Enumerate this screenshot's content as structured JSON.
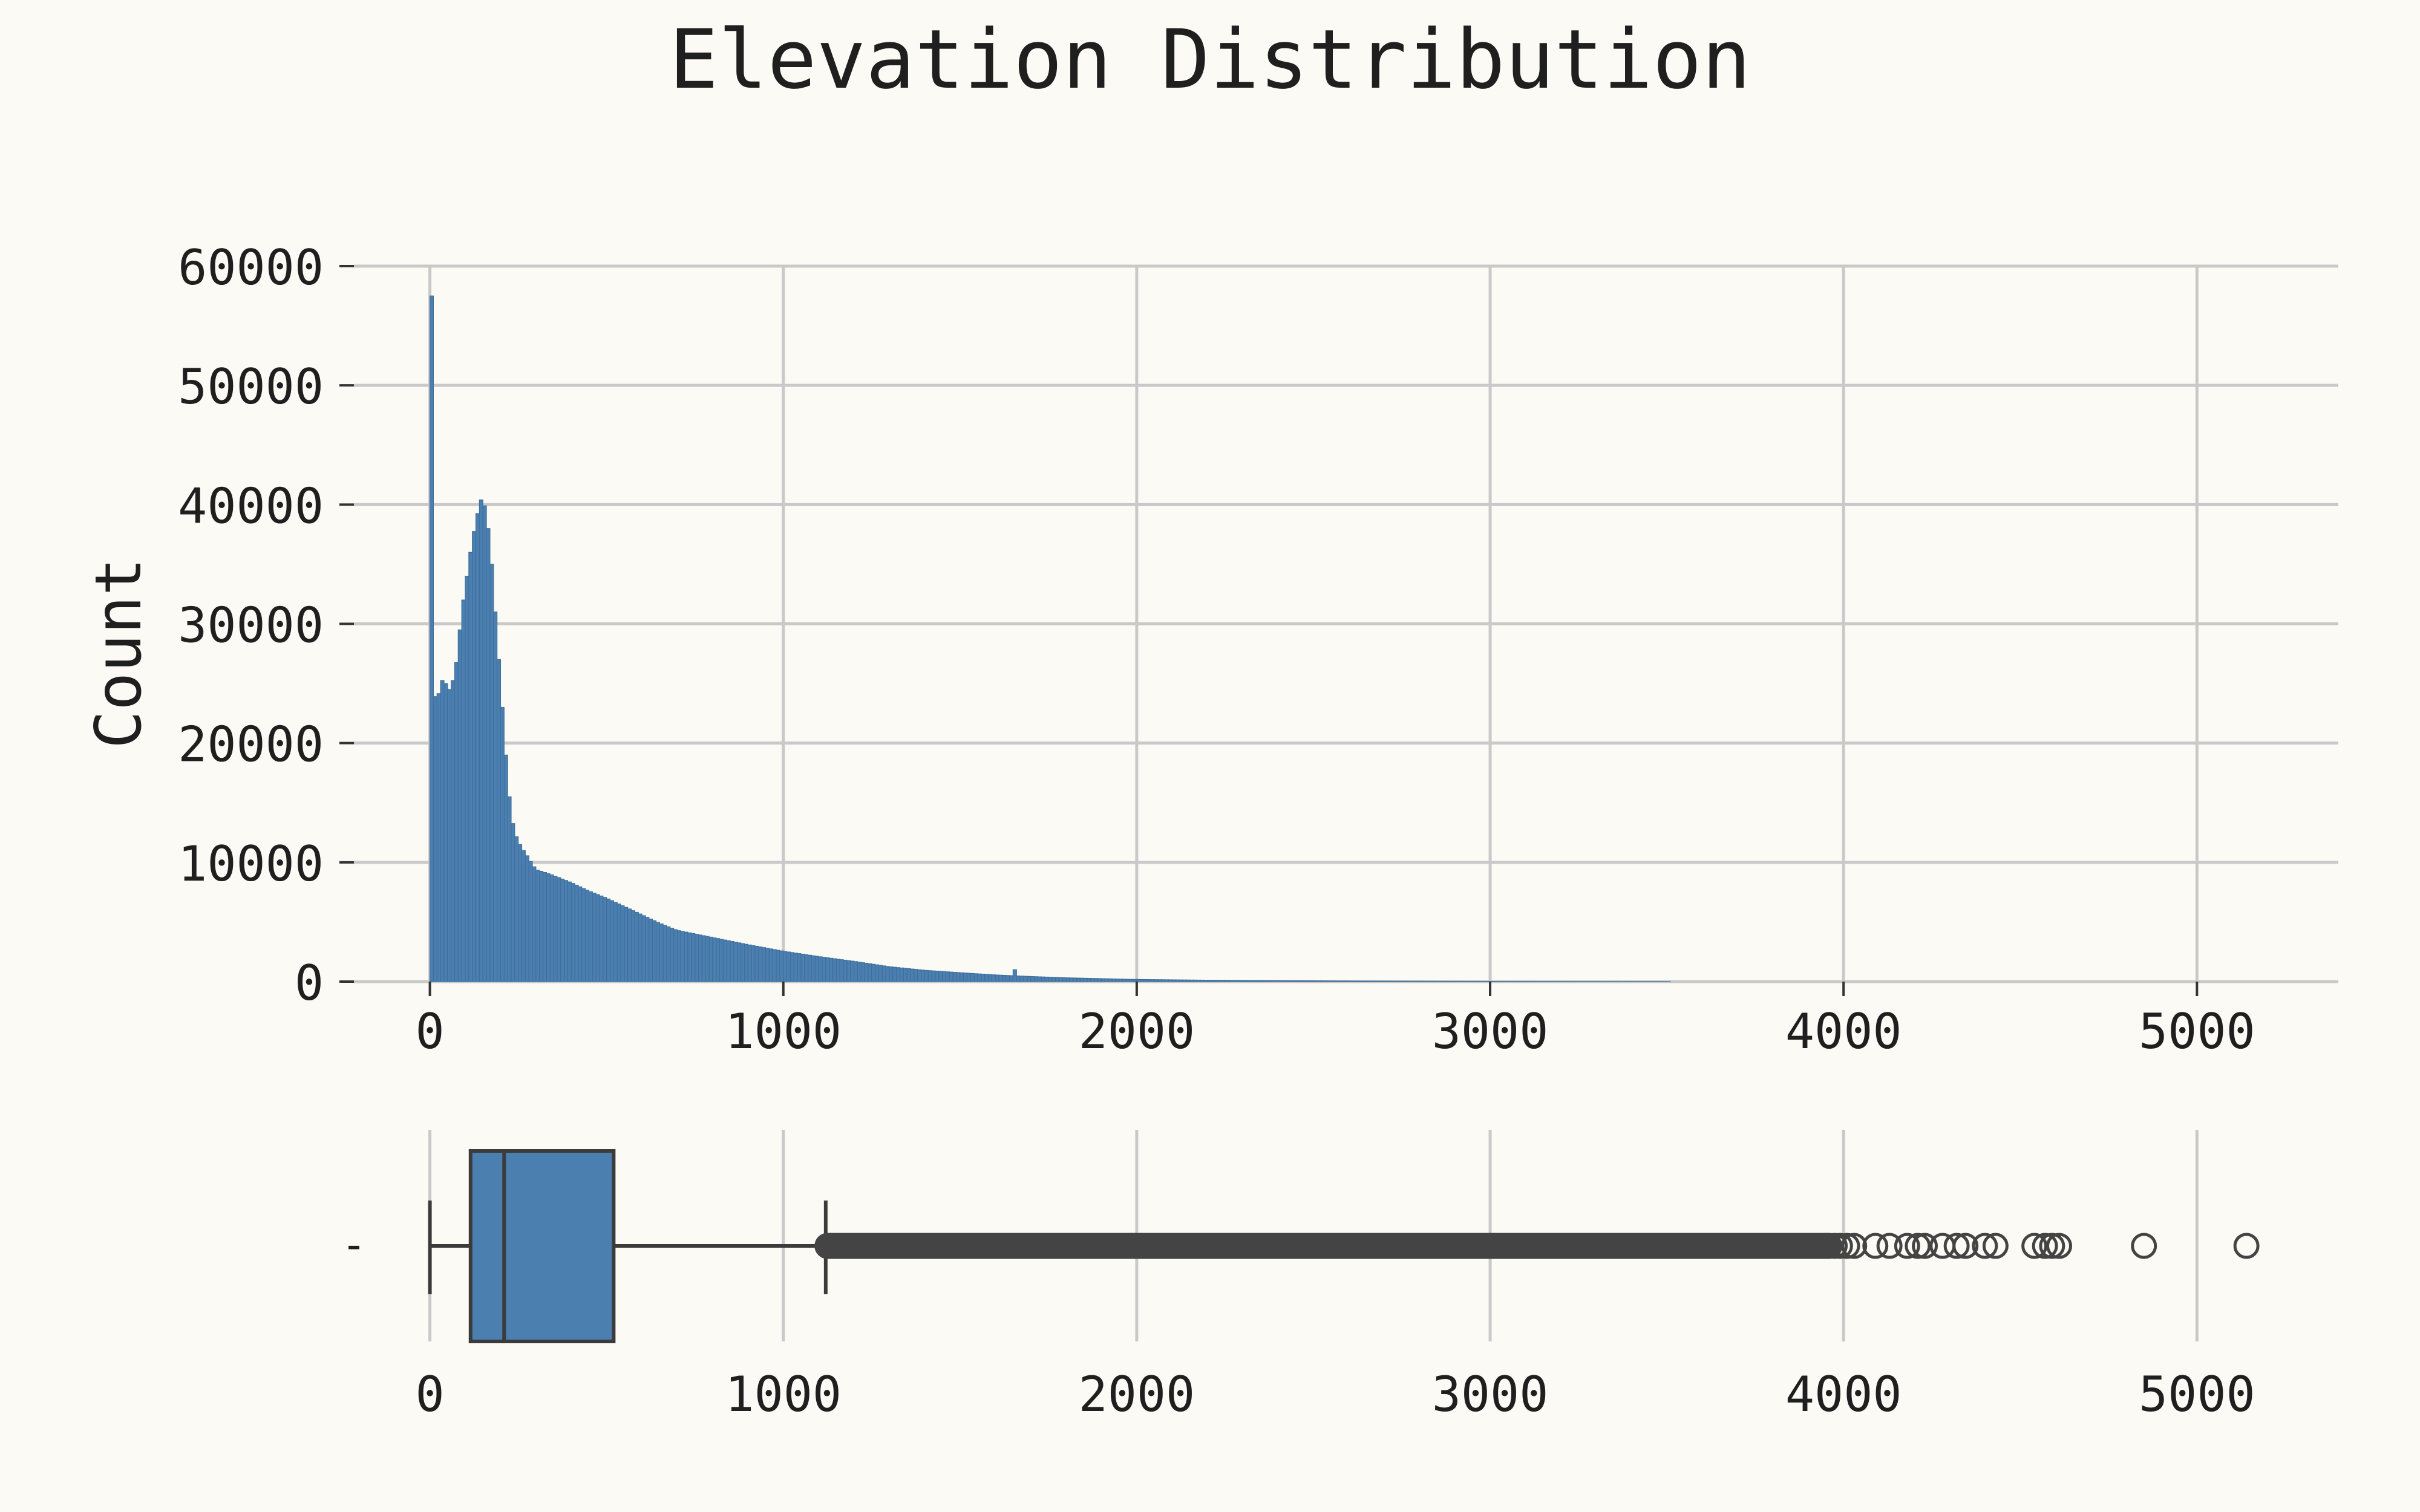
{
  "title": "Elevation Distribution",
  "colors": {
    "background": "#fbfaf5",
    "bar_fill": "#4a7fb0",
    "bar_edge": "#3f6f9c",
    "box_fill": "#4a7fb0",
    "box_edge": "#3b3b3b",
    "flier": "#444444",
    "grid": "#c9c9c9",
    "text": "#1f1f1f"
  },
  "chart_data": [
    {
      "type": "histogram",
      "ylabel": "Count",
      "xlim": [
        -215,
        5400
      ],
      "ylim": [
        0,
        60000
      ],
      "x_ticks": [
        0,
        1000,
        2000,
        3000,
        4000,
        5000
      ],
      "y_ticks": [
        0,
        10000,
        20000,
        30000,
        40000,
        50000,
        60000
      ],
      "x_tick_labels": [
        "0",
        "1000",
        "2000",
        "3000",
        "4000",
        "5000"
      ],
      "y_tick_labels": [
        "0",
        "10000",
        "20000",
        "30000",
        "40000",
        "50000",
        "60000"
      ],
      "grid": true,
      "bin_width": 10,
      "profile_x": [
        0,
        10,
        20,
        30,
        40,
        50,
        60,
        70,
        80,
        90,
        100,
        110,
        120,
        130,
        140,
        150,
        160,
        170,
        180,
        190,
        200,
        210,
        220,
        230,
        240,
        250,
        260,
        270,
        280,
        300,
        350,
        400,
        450,
        500,
        550,
        600,
        650,
        700,
        800,
        900,
        1000,
        1100,
        1200,
        1300,
        1400,
        1500,
        1600,
        1700,
        1800,
        1900,
        2000,
        2200,
        2400,
        2600,
        2800,
        3000,
        3200,
        3500,
        3510
      ],
      "profile_y": [
        57500,
        24000,
        23800,
        24500,
        26000,
        24000,
        25000,
        25500,
        28000,
        31000,
        33000,
        35000,
        37000,
        38500,
        40000,
        40800,
        39000,
        37000,
        33000,
        29000,
        25000,
        21000,
        17000,
        14000,
        12500,
        11800,
        11200,
        10800,
        10300,
        9400,
        8900,
        8300,
        7600,
        7000,
        6300,
        5600,
        4900,
        4300,
        3700,
        3100,
        2550,
        2100,
        1700,
        1250,
        950,
        750,
        560,
        430,
        320,
        250,
        180,
        120,
        80,
        50,
        30,
        20,
        10,
        3,
        0
      ],
      "spikes": [
        {
          "x": 1650,
          "y": 1000
        }
      ]
    },
    {
      "type": "boxplot",
      "xlim": [
        -215,
        5400
      ],
      "x_ticks": [
        0,
        1000,
        2000,
        3000,
        4000,
        5000
      ],
      "x_tick_labels": [
        "0",
        "1000",
        "2000",
        "3000",
        "4000",
        "5000"
      ],
      "y_tick_labels": [
        "-"
      ],
      "grid": true,
      "whisker_low": 0,
      "q1": 115,
      "median": 210,
      "q3": 520,
      "whisker_high": 1120,
      "flier_dense_range": [
        1125,
        3960
      ],
      "fliers": [
        3880,
        3900,
        3925,
        3945,
        3975,
        3990,
        4010,
        4030,
        4090,
        4130,
        4180,
        4210,
        4230,
        4280,
        4320,
        4345,
        4400,
        4430,
        4540,
        4570,
        4590,
        4610,
        4850,
        5140
      ]
    }
  ]
}
